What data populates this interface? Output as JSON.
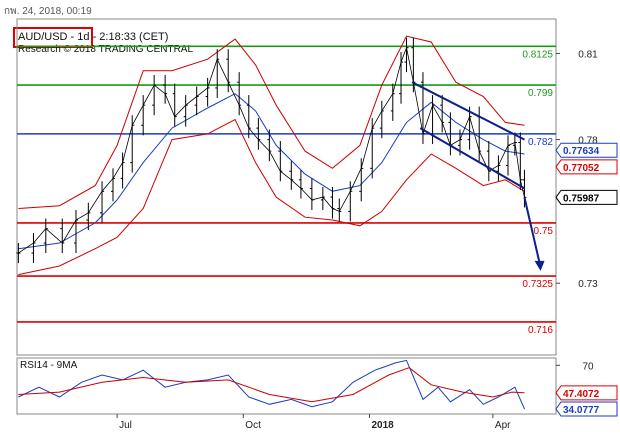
{
  "header": {
    "datestamp": "กพ. 24, 2018, 00:19",
    "symbol_line": "AUD/USD - 1d - 2:18:33 (CET)",
    "research_line": "Research © 2018 TRADING CENTRAL"
  },
  "colors": {
    "price": "#000000",
    "bollinger": "#cc0000",
    "ma": "#1a3dbf",
    "resistance": "#1a9a1a",
    "pivot": "#1a3dbf",
    "support": "#dd0000",
    "channel": "#0d1f8a",
    "arrow": "#0d1f8a",
    "tag_blue": "#1a3dbf",
    "tag_red": "#dd0000",
    "tag_black": "#000000"
  },
  "chart_data": [
    {
      "type": "line",
      "name": "price-panel",
      "ylim": [
        0.705,
        0.822
      ],
      "yticks": [
        0.81,
        0.78,
        0.76,
        0.73
      ],
      "ytick_labels": [
        "0.81",
        "0.78",
        "0.76",
        "0.73"
      ],
      "xticks": [
        {
          "label": "Jul",
          "date": "2017-07-01"
        },
        {
          "label": "Oct",
          "date": "2017-10-01"
        },
        {
          "label": "2018",
          "date": "2018-01-01"
        },
        {
          "label": "Apr",
          "date": "2018-04-01"
        }
      ],
      "xrange": [
        "2017-04-19",
        "2018-05-17"
      ],
      "levels": [
        {
          "label": "0.8125",
          "value": 0.8125,
          "kind": "resistance"
        },
        {
          "label": "0.799",
          "value": 0.799,
          "kind": "resistance"
        },
        {
          "label": "0.782",
          "value": 0.782,
          "kind": "pivot"
        },
        {
          "label": "0.75",
          "value": 0.751,
          "kind": "support"
        },
        {
          "label": "0.7325",
          "value": 0.7325,
          "kind": "support"
        },
        {
          "label": "0.716",
          "value": 0.7165,
          "kind": "support"
        }
      ],
      "price_tags": [
        {
          "label": "0.77634",
          "value": 0.7763,
          "kind": "blue"
        },
        {
          "label": "0.77052",
          "value": 0.7705,
          "kind": "red"
        },
        {
          "label": "0.75987",
          "value": 0.7599,
          "kind": "black"
        }
      ],
      "close": [
        [
          "2017-04-20",
          0.7405
        ],
        [
          "2017-05-01",
          0.744
        ],
        [
          "2017-05-10",
          0.749
        ],
        [
          "2017-05-22",
          0.744
        ],
        [
          "2017-06-01",
          0.752
        ],
        [
          "2017-06-10",
          0.7545
        ],
        [
          "2017-06-20",
          0.762
        ],
        [
          "2017-06-28",
          0.7665
        ],
        [
          "2017-07-05",
          0.772
        ],
        [
          "2017-07-12",
          0.785
        ],
        [
          "2017-07-20",
          0.792
        ],
        [
          "2017-07-28",
          0.799
        ],
        [
          "2017-08-05",
          0.796
        ],
        [
          "2017-08-12",
          0.788
        ],
        [
          "2017-08-20",
          0.792
        ],
        [
          "2017-08-28",
          0.795
        ],
        [
          "2017-09-05",
          0.798
        ],
        [
          "2017-09-12",
          0.808
        ],
        [
          "2017-09-20",
          0.8
        ],
        [
          "2017-09-28",
          0.792
        ],
        [
          "2017-10-05",
          0.784
        ],
        [
          "2017-10-12",
          0.78
        ],
        [
          "2017-10-20",
          0.776
        ],
        [
          "2017-10-28",
          0.769
        ],
        [
          "2017-11-05",
          0.766
        ],
        [
          "2017-11-12",
          0.763
        ],
        [
          "2017-11-20",
          0.759
        ],
        [
          "2017-11-28",
          0.76
        ],
        [
          "2017-12-05",
          0.756
        ],
        [
          "2017-12-10",
          0.755
        ],
        [
          "2017-12-18",
          0.762
        ],
        [
          "2017-12-26",
          0.77
        ],
        [
          "2018-01-03",
          0.784
        ],
        [
          "2018-01-10",
          0.79
        ],
        [
          "2018-01-18",
          0.796
        ],
        [
          "2018-01-24",
          0.807
        ],
        [
          "2018-01-28",
          0.812
        ],
        [
          "2018-02-02",
          0.8
        ],
        [
          "2018-02-09",
          0.782
        ],
        [
          "2018-02-16",
          0.792
        ],
        [
          "2018-02-23",
          0.786
        ],
        [
          "2018-03-01",
          0.778
        ],
        [
          "2018-03-08",
          0.78
        ],
        [
          "2018-03-15",
          0.788
        ],
        [
          "2018-03-22",
          0.776
        ],
        [
          "2018-03-29",
          0.769
        ],
        [
          "2018-04-05",
          0.771
        ],
        [
          "2018-04-12",
          0.778
        ],
        [
          "2018-04-17",
          0.779
        ],
        [
          "2018-04-21",
          0.766
        ],
        [
          "2018-04-24",
          0.7599
        ]
      ],
      "bollinger_upper": [
        [
          "2017-04-20",
          0.756
        ],
        [
          "2017-05-20",
          0.757
        ],
        [
          "2017-06-15",
          0.764
        ],
        [
          "2017-07-01",
          0.778
        ],
        [
          "2017-07-20",
          0.804
        ],
        [
          "2017-08-10",
          0.804
        ],
        [
          "2017-09-05",
          0.808
        ],
        [
          "2017-09-25",
          0.815
        ],
        [
          "2017-10-10",
          0.806
        ],
        [
          "2017-10-25",
          0.792
        ],
        [
          "2017-11-15",
          0.776
        ],
        [
          "2017-12-05",
          0.77
        ],
        [
          "2017-12-25",
          0.778
        ],
        [
          "2018-01-10",
          0.799
        ],
        [
          "2018-01-28",
          0.816
        ],
        [
          "2018-02-15",
          0.814
        ],
        [
          "2018-03-05",
          0.8
        ],
        [
          "2018-03-25",
          0.795
        ],
        [
          "2018-04-10",
          0.786
        ],
        [
          "2018-04-24",
          0.785
        ]
      ],
      "bollinger_lower": [
        [
          "2017-04-20",
          0.733
        ],
        [
          "2017-05-20",
          0.736
        ],
        [
          "2017-06-15",
          0.742
        ],
        [
          "2017-07-01",
          0.746
        ],
        [
          "2017-07-20",
          0.756
        ],
        [
          "2017-08-10",
          0.78
        ],
        [
          "2017-09-05",
          0.782
        ],
        [
          "2017-09-25",
          0.787
        ],
        [
          "2017-10-10",
          0.772
        ],
        [
          "2017-10-25",
          0.76
        ],
        [
          "2017-11-15",
          0.753
        ],
        [
          "2017-12-05",
          0.752
        ],
        [
          "2017-12-25",
          0.75
        ],
        [
          "2018-01-10",
          0.755
        ],
        [
          "2018-01-28",
          0.766
        ],
        [
          "2018-02-15",
          0.775
        ],
        [
          "2018-03-05",
          0.77
        ],
        [
          "2018-03-25",
          0.764
        ],
        [
          "2018-04-10",
          0.766
        ],
        [
          "2018-04-24",
          0.762
        ]
      ],
      "moving_average": [
        [
          "2017-04-20",
          0.742
        ],
        [
          "2017-05-20",
          0.744
        ],
        [
          "2017-06-15",
          0.751
        ],
        [
          "2017-07-01",
          0.759
        ],
        [
          "2017-07-20",
          0.772
        ],
        [
          "2017-08-10",
          0.784
        ],
        [
          "2017-09-05",
          0.791
        ],
        [
          "2017-09-25",
          0.796
        ],
        [
          "2017-10-10",
          0.79
        ],
        [
          "2017-10-25",
          0.778
        ],
        [
          "2017-11-15",
          0.768
        ],
        [
          "2017-12-05",
          0.762
        ],
        [
          "2017-12-25",
          0.764
        ],
        [
          "2018-01-10",
          0.772
        ],
        [
          "2018-01-28",
          0.786
        ],
        [
          "2018-02-15",
          0.793
        ],
        [
          "2018-03-05",
          0.786
        ],
        [
          "2018-03-25",
          0.78
        ],
        [
          "2018-04-10",
          0.776
        ],
        [
          "2018-04-24",
          0.775
        ]
      ],
      "channel_upper": [
        [
          "2018-02-01",
          0.8
        ],
        [
          "2018-04-24",
          0.78
        ]
      ],
      "channel_lower": [
        [
          "2018-02-07",
          0.784
        ],
        [
          "2018-04-24",
          0.763
        ]
      ],
      "forecast_arrow": [
        [
          "2018-04-24",
          0.7599
        ],
        [
          "2018-05-05",
          0.735
        ]
      ]
    },
    {
      "type": "line",
      "name": "rsi-panel",
      "title": "RSI14 - 9MA",
      "ylim": [
        30,
        76
      ],
      "yticks": [
        70
      ],
      "ytick_labels": [
        "70"
      ],
      "xrange": [
        "2017-04-19",
        "2018-05-17"
      ],
      "price_tags": [
        {
          "label": "47.4072",
          "value": 47.4,
          "kind": "red"
        },
        {
          "label": "34.0777",
          "value": 34.1,
          "kind": "blue"
        }
      ],
      "rsi": [
        [
          "2017-04-20",
          44
        ],
        [
          "2017-05-05",
          52
        ],
        [
          "2017-05-20",
          44
        ],
        [
          "2017-06-05",
          56
        ],
        [
          "2017-06-20",
          62
        ],
        [
          "2017-07-05",
          58
        ],
        [
          "2017-07-20",
          66
        ],
        [
          "2017-08-05",
          52
        ],
        [
          "2017-08-20",
          56
        ],
        [
          "2017-09-05",
          58
        ],
        [
          "2017-09-20",
          62
        ],
        [
          "2017-10-05",
          44
        ],
        [
          "2017-10-20",
          38
        ],
        [
          "2017-11-05",
          42
        ],
        [
          "2017-11-20",
          36
        ],
        [
          "2017-12-05",
          40
        ],
        [
          "2017-12-20",
          56
        ],
        [
          "2018-01-05",
          66
        ],
        [
          "2018-01-20",
          72
        ],
        [
          "2018-01-28",
          74
        ],
        [
          "2018-02-09",
          42
        ],
        [
          "2018-02-20",
          52
        ],
        [
          "2018-03-01",
          40
        ],
        [
          "2018-03-15",
          50
        ],
        [
          "2018-03-25",
          38
        ],
        [
          "2018-04-05",
          44
        ],
        [
          "2018-04-17",
          52
        ],
        [
          "2018-04-24",
          34
        ]
      ],
      "rsi_ma": [
        [
          "2017-04-20",
          46
        ],
        [
          "2017-05-20",
          48
        ],
        [
          "2017-06-20",
          56
        ],
        [
          "2017-07-20",
          60
        ],
        [
          "2017-08-20",
          56
        ],
        [
          "2017-09-20",
          58
        ],
        [
          "2017-10-20",
          46
        ],
        [
          "2017-11-20",
          40
        ],
        [
          "2017-12-20",
          46
        ],
        [
          "2018-01-15",
          62
        ],
        [
          "2018-01-30",
          68
        ],
        [
          "2018-02-15",
          54
        ],
        [
          "2018-03-10",
          48
        ],
        [
          "2018-04-01",
          44
        ],
        [
          "2018-04-15",
          48
        ],
        [
          "2018-04-24",
          47.4
        ]
      ]
    }
  ]
}
